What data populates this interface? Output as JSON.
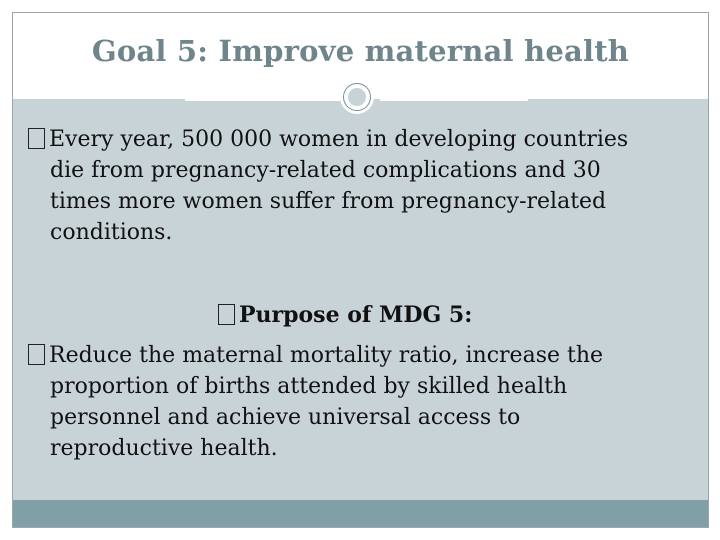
{
  "slide": {
    "title": "Goal 5: Improve maternal health",
    "paragraph1": {
      "lines": [
        "Every year, 500 000 women in developing countries",
        "die from pregnancy-related complications and 30",
        "times more women suffer from pregnancy-related",
        "conditions."
      ]
    },
    "subheading": "Purpose of MDG 5:",
    "paragraph2": {
      "lines": [
        "Reduce the maternal mortality ratio, increase the",
        "proportion of births attended by skilled health",
        "personnel and achieve universal access to",
        "reproductive health."
      ]
    }
  },
  "colors": {
    "title": "#6f858b",
    "content_background": "#c8d3d8",
    "footer_band": "#809fa6",
    "ornament": "#7a9096",
    "text": "#111111"
  },
  "icons": {
    "bullet": "bullet-box-icon",
    "ornament": "ring-ornament-icon"
  }
}
